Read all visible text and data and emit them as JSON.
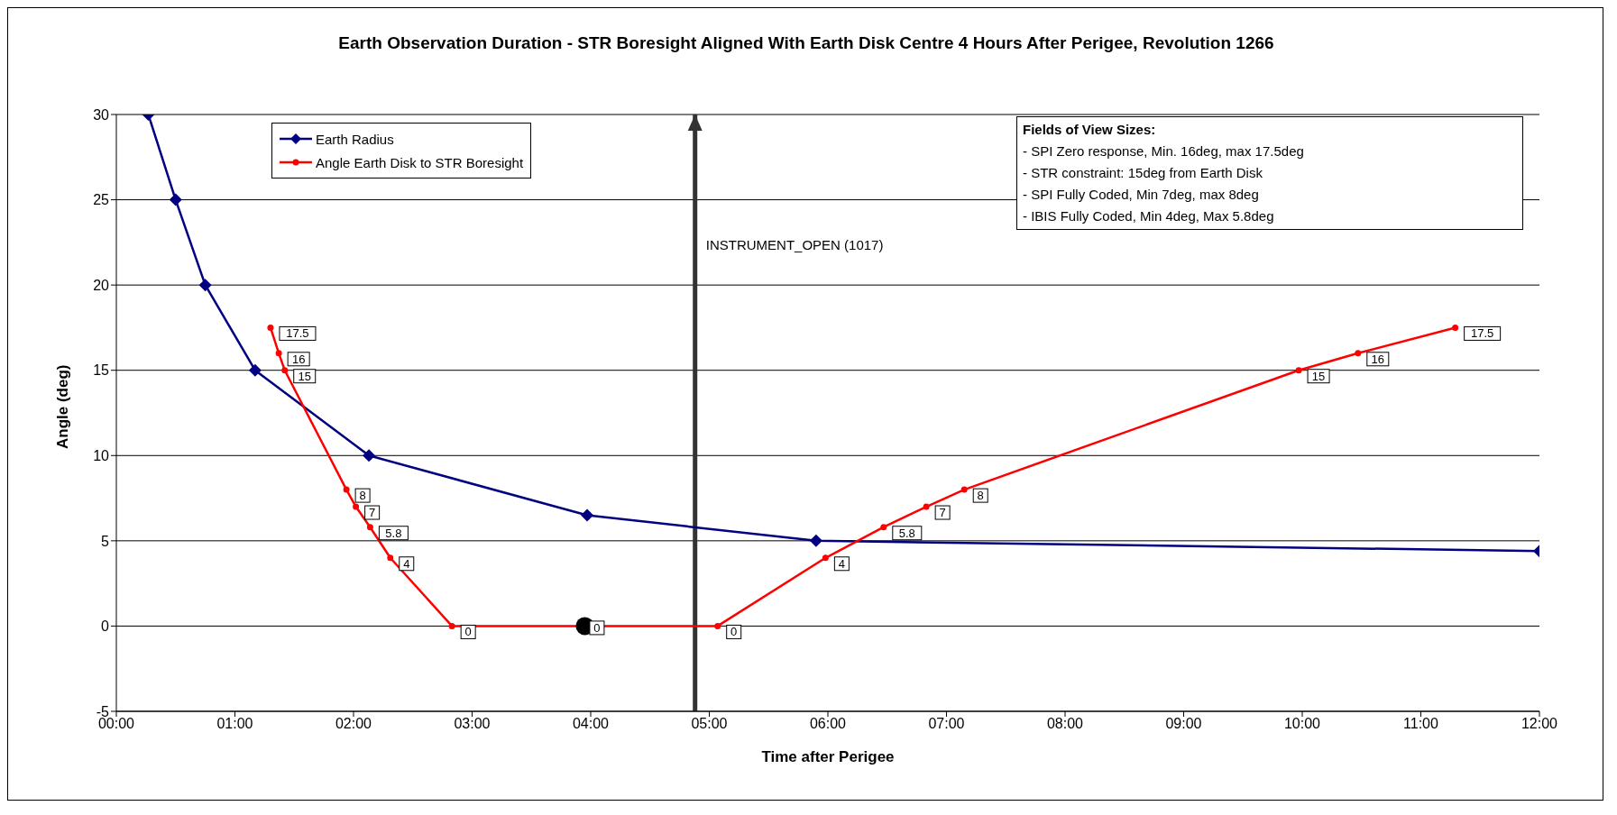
{
  "chart_data": {
    "type": "line",
    "title": "Earth Observation Duration - STR Boresight Aligned With Earth Disk Centre 4 Hours After Perigee, Revolution 1266",
    "xlabel": "Time after Perigee",
    "ylabel": "Angle (deg)",
    "xlim": [
      0,
      12
    ],
    "xticks": [
      {
        "value": 0,
        "label": "00:00"
      },
      {
        "value": 1,
        "label": "01:00"
      },
      {
        "value": 2,
        "label": "02:00"
      },
      {
        "value": 3,
        "label": "03:00"
      },
      {
        "value": 4,
        "label": "04:00"
      },
      {
        "value": 5,
        "label": "05:00"
      },
      {
        "value": 6,
        "label": "06:00"
      },
      {
        "value": 7,
        "label": "07:00"
      },
      {
        "value": 8,
        "label": "08:00"
      },
      {
        "value": 9,
        "label": "09:00"
      },
      {
        "value": 10,
        "label": "10:00"
      },
      {
        "value": 11,
        "label": "11:00"
      },
      {
        "value": 12,
        "label": "12:00"
      }
    ],
    "ylim": [
      -5,
      30
    ],
    "yticks": [
      -5,
      0,
      5,
      10,
      15,
      20,
      25,
      30
    ],
    "grid": "y",
    "legend": "top left",
    "series": [
      {
        "name": "Earth Radius",
        "color": "#000080",
        "marker": "diamond",
        "x": [
          0.27,
          0.5,
          0.75,
          1.17,
          2.13,
          3.97,
          5.9,
          12
        ],
        "values": [
          30,
          25,
          20,
          15,
          10,
          6.5,
          5,
          4.4
        ]
      },
      {
        "name": "Angle Earth Disk to STR Boresight",
        "color": "#ff0000",
        "marker": "circle",
        "x": [
          1.3,
          1.37,
          1.42,
          1.94,
          2.02,
          2.14,
          2.31,
          2.83,
          5.07,
          5.98,
          6.47,
          6.83,
          7.15,
          9.97,
          10.47,
          11.29
        ],
        "values": [
          17.5,
          16,
          15,
          8,
          7,
          5.8,
          4,
          0,
          0,
          4,
          5.8,
          7,
          8,
          15,
          16,
          17.5
        ],
        "data_labels": true
      },
      {
        "type": "scatter",
        "color": "#000000",
        "marker": "circle",
        "x": [
          3.95
        ],
        "values": [
          0
        ],
        "data_labels": true
      }
    ],
    "ref_lines": [
      {
        "axis": "x",
        "value": 4.88,
        "label": "INSTRUMENT_OPEN (1017)",
        "color": "#333333"
      }
    ],
    "annotations": [
      "Fields of View Sizes:",
      "- SPI Zero response, Min. 16deg, max 17.5deg",
      "- STR constraint: 15deg from Earth Disk",
      "- SPI Fully Coded, Min 7deg, max 8deg",
      "- IBIS Fully Coded, Min 4deg, Max 5.8deg"
    ]
  }
}
